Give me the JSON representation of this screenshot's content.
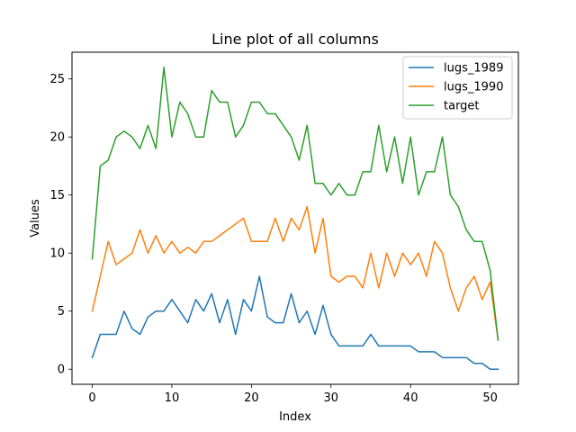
{
  "chart_data": {
    "type": "line",
    "title": "Line plot of all columns",
    "xlabel": "Index",
    "ylabel": "Values",
    "xlim": [
      -2.55,
      53.55
    ],
    "ylim": [
      -1.3,
      27.3
    ],
    "xticks": [
      "0",
      "10",
      "20",
      "30",
      "40",
      "50"
    ],
    "yticks": [
      "0",
      "5",
      "10",
      "15",
      "20",
      "25"
    ],
    "grid": false,
    "legend_position": "top-right",
    "x": [
      0,
      1,
      2,
      3,
      4,
      5,
      6,
      7,
      8,
      9,
      10,
      11,
      12,
      13,
      14,
      15,
      16,
      17,
      18,
      19,
      20,
      21,
      22,
      23,
      24,
      25,
      26,
      27,
      28,
      29,
      30,
      31,
      32,
      33,
      34,
      35,
      36,
      37,
      38,
      39,
      40,
      41,
      42,
      43,
      44,
      45,
      46,
      47,
      48,
      49,
      50,
      51
    ],
    "series": [
      {
        "name": "lugs_1989",
        "color": "#1f77b4",
        "values": [
          1,
          3,
          3,
          3,
          5,
          3.5,
          3,
          4.5,
          5,
          5,
          6,
          5,
          4,
          6,
          5,
          6.5,
          4,
          6,
          3,
          6,
          5,
          8,
          4.5,
          4,
          4,
          6.5,
          4,
          5,
          3,
          5.5,
          3,
          2,
          2,
          2,
          2,
          3,
          2,
          2,
          2,
          2,
          2,
          1.5,
          1.5,
          1.5,
          1,
          1,
          1,
          1,
          0.5,
          0.5,
          0,
          0
        ]
      },
      {
        "name": "lugs_1990",
        "color": "#ff7f0e",
        "values": [
          5,
          8,
          11,
          9,
          9.5,
          10,
          12,
          10,
          11.5,
          10,
          11,
          10,
          10.5,
          10,
          11,
          11,
          11.5,
          12,
          12.5,
          13,
          11,
          11,
          11,
          13,
          11,
          13,
          12,
          14,
          10,
          13,
          8,
          7.5,
          8,
          8,
          7,
          10,
          7,
          10,
          8,
          10,
          9,
          10,
          8,
          11,
          10,
          7,
          5,
          7,
          8,
          6,
          7.5,
          2.5
        ]
      },
      {
        "name": "target",
        "color": "#2ca02c",
        "values": [
          9.5,
          17.5,
          18,
          20,
          20.5,
          20,
          19,
          21,
          19,
          26,
          20,
          23,
          22,
          20,
          20,
          24,
          23,
          23,
          20,
          21,
          23,
          23,
          22,
          22,
          21,
          20,
          18,
          21,
          16,
          16,
          15,
          16,
          15,
          15,
          17,
          17,
          21,
          17,
          20,
          16,
          20,
          15,
          17,
          17,
          20,
          15,
          14,
          12,
          11,
          11,
          8.5,
          2.5
        ]
      }
    ]
  }
}
